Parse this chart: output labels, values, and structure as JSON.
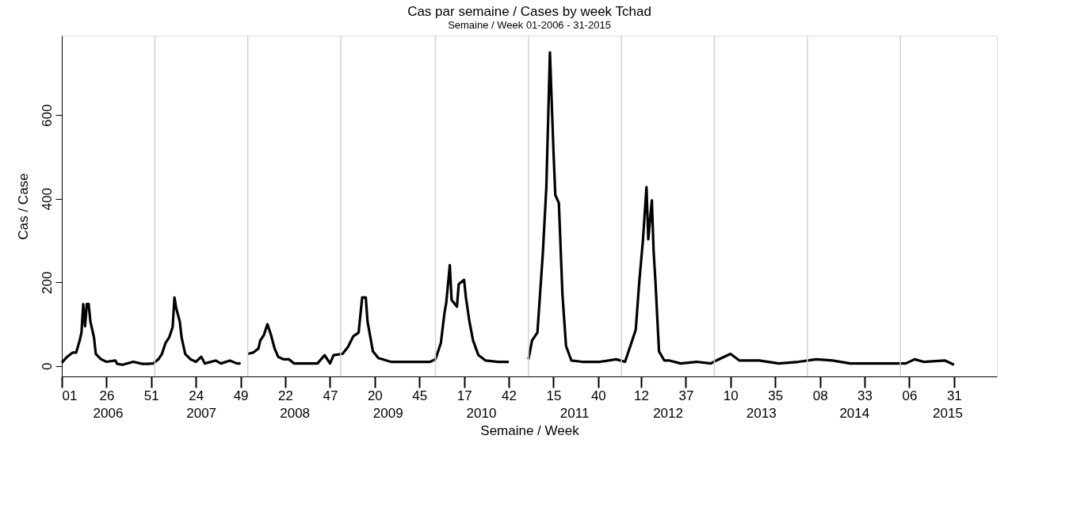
{
  "chart_data": {
    "type": "line",
    "title": "Cas par semaine / Cases by week Tchad",
    "subtitle": "Semaine / Week 01-2006 - 31-2015",
    "xlabel": "Semaine / Week",
    "ylabel": "Cas / Case",
    "x": [
      "2006-01-02",
      "2006-01-23",
      "2006-02-13",
      "2006-02-27",
      "2006-03-13",
      "2006-03-20",
      "2006-03-27",
      "2006-04-03",
      "2006-04-10",
      "2006-04-17",
      "2006-04-24",
      "2006-05-08",
      "2006-05-15",
      "2006-06-05",
      "2006-06-26",
      "2006-07-31",
      "2006-08-07",
      "2006-08-28",
      "2006-10-09",
      "2006-11-13",
      "2006-12-04",
      "2006-12-25",
      "2007-01-15",
      "2007-01-29",
      "2007-02-12",
      "2007-02-26",
      "2007-03-12",
      "2007-03-19",
      "2007-03-26",
      "2007-04-09",
      "2007-04-16",
      "2007-04-30",
      "2007-05-21",
      "2007-06-11",
      "2007-07-02",
      "2007-07-16",
      "2007-08-27",
      "2007-09-17",
      "2007-10-22",
      "2007-11-19",
      "2007-12-03",
      "2007-12-17",
      "2007-12-31",
      "2008-01-21",
      "2008-02-11",
      "2008-02-18",
      "2008-03-03",
      "2008-03-17",
      "2008-03-31",
      "2008-04-14",
      "2008-04-28",
      "2008-05-19",
      "2008-06-09",
      "2008-06-30",
      "2008-08-18",
      "2008-09-29",
      "2008-10-27",
      "2008-11-17",
      "2008-12-01",
      "2009-01-05",
      "2009-01-26",
      "2009-02-16",
      "2009-03-09",
      "2009-03-23",
      "2009-04-06",
      "2009-04-13",
      "2009-05-04",
      "2009-05-25",
      "2009-07-13",
      "2009-08-24",
      "2009-11-02",
      "2009-12-14",
      "2010-01-04",
      "2010-01-25",
      "2010-02-08",
      "2010-02-15",
      "2010-03-01",
      "2010-03-08",
      "2010-03-29",
      "2010-04-05",
      "2010-04-26",
      "2010-05-03",
      "2010-05-17",
      "2010-05-31",
      "2010-06-21",
      "2010-07-19",
      "2010-09-06",
      "2010-10-18",
      "2010-11-22",
      "2011-01-03",
      "2011-01-17",
      "2011-02-07",
      "2011-02-28",
      "2011-03-14",
      "2011-03-28",
      "2011-04-11",
      "2011-04-18",
      "2011-05-02",
      "2011-05-16",
      "2011-05-30",
      "2011-06-20",
      "2011-08-01",
      "2011-10-10",
      "2011-12-12",
      "2012-01-16",
      "2012-02-06",
      "2012-02-27",
      "2012-03-12",
      "2012-03-26",
      "2012-04-09",
      "2012-04-16",
      "2012-04-30",
      "2012-05-07",
      "2012-05-14",
      "2012-05-28",
      "2012-06-18",
      "2012-07-09",
      "2012-08-20",
      "2012-10-22",
      "2012-12-17",
      "2013-01-07",
      "2013-03-04",
      "2013-04-08",
      "2013-06-24",
      "2013-09-09",
      "2013-11-25",
      "2014-02-03",
      "2014-04-07",
      "2014-06-16",
      "2014-09-29",
      "2015-01-19",
      "2015-02-23",
      "2015-03-30",
      "2015-06-22",
      "2015-07-27"
    ],
    "series": [
      {
        "color": "#000000",
        "values": [
          8,
          22,
          32,
          32,
          61,
          80,
          148,
          95,
          148,
          148,
          106,
          68,
          29,
          16,
          10,
          13,
          5,
          3,
          10,
          5,
          5,
          6,
          16,
          29,
          55,
          68,
          93,
          164,
          138,
          106,
          68,
          29,
          16,
          10,
          22,
          6,
          13,
          6,
          13,
          6,
          6,
          null,
          29,
          32,
          42,
          61,
          74,
          100,
          74,
          42,
          22,
          16,
          16,
          6,
          6,
          6,
          26,
          6,
          26,
          29,
          45,
          71,
          80,
          164,
          164,
          106,
          35,
          19,
          10,
          10,
          10,
          10,
          16,
          55,
          126,
          151,
          241,
          158,
          142,
          196,
          206,
          164,
          106,
          61,
          26,
          13,
          10,
          10,
          null,
          16,
          61,
          80,
          267,
          428,
          750,
          512,
          409,
          390,
          171,
          48,
          13,
          10,
          10,
          16,
          10,
          48,
          87,
          203,
          300,
          428,
          303,
          396,
          274,
          203,
          35,
          13,
          13,
          6,
          10,
          6,
          13,
          29,
          13,
          13,
          6,
          10,
          16,
          13,
          6,
          6,
          6,
          16,
          10,
          13,
          3
        ]
      }
    ],
    "xlim": [
      "2006-01-02",
      "2016-01-11"
    ],
    "ylim": [
      -25,
      790
    ],
    "xticks": [
      {
        "value": "2006-01-02",
        "label": "01"
      },
      {
        "value": "2006-06-26",
        "label": "26"
      },
      {
        "value": "2006-12-18",
        "label": "51"
      },
      {
        "value": "2007-06-11",
        "label": "24"
      },
      {
        "value": "2007-12-03",
        "label": "49"
      },
      {
        "value": "2008-05-26",
        "label": "22"
      },
      {
        "value": "2008-11-17",
        "label": "47"
      },
      {
        "value": "2009-05-11",
        "label": "20"
      },
      {
        "value": "2009-11-02",
        "label": "45"
      },
      {
        "value": "2010-04-26",
        "label": "17"
      },
      {
        "value": "2010-10-18",
        "label": "42"
      },
      {
        "value": "2011-04-11",
        "label": "15"
      },
      {
        "value": "2011-10-03",
        "label": "40"
      },
      {
        "value": "2012-03-19",
        "label": "12"
      },
      {
        "value": "2012-09-10",
        "label": "37"
      },
      {
        "value": "2013-03-04",
        "label": "10"
      },
      {
        "value": "2013-08-26",
        "label": "35"
      },
      {
        "value": "2014-02-17",
        "label": "08"
      },
      {
        "value": "2014-08-11",
        "label": "33"
      },
      {
        "value": "2015-02-02",
        "label": "06"
      },
      {
        "value": "2015-07-27",
        "label": "31"
      }
    ],
    "x2lim": [
      "2006-01-02",
      "2016-01-11"
    ],
    "x2ticks": [
      {
        "value": "2006-07-01",
        "label": "2006"
      },
      {
        "value": "2007-07-01",
        "label": "2007"
      },
      {
        "value": "2008-07-01",
        "label": "2008"
      },
      {
        "value": "2009-07-01",
        "label": "2009"
      },
      {
        "value": "2010-07-01",
        "label": "2010"
      },
      {
        "value": "2011-07-01",
        "label": "2011"
      },
      {
        "value": "2012-07-01",
        "label": "2012"
      },
      {
        "value": "2013-07-01",
        "label": "2013"
      },
      {
        "value": "2014-07-01",
        "label": "2014"
      },
      {
        "value": "2015-07-01",
        "label": "2015"
      }
    ],
    "yticks": [
      0,
      200,
      400,
      600
    ],
    "ref_lines": [
      {
        "axis": "x",
        "value": "2007-01-01",
        "color": "#d3d3d3"
      },
      {
        "axis": "x",
        "value": "2007-12-31",
        "color": "#d3d3d3"
      },
      {
        "axis": "x",
        "value": "2008-12-29",
        "color": "#d3d3d3"
      },
      {
        "axis": "x",
        "value": "2010-01-04",
        "color": "#d3d3d3"
      },
      {
        "axis": "x",
        "value": "2011-01-03",
        "color": "#d3d3d3"
      },
      {
        "axis": "x",
        "value": "2012-01-02",
        "color": "#d3d3d3"
      },
      {
        "axis": "x",
        "value": "2012-12-31",
        "color": "#d3d3d3"
      },
      {
        "axis": "x",
        "value": "2013-12-30",
        "color": "#d3d3d3"
      },
      {
        "axis": "x",
        "value": "2014-12-29",
        "color": "#d3d3d3"
      }
    ],
    "grid": false,
    "line_style": "solid"
  }
}
